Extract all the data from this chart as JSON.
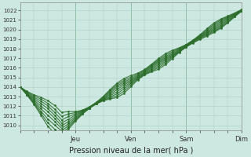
{
  "title": "Pression niveau de la mer( hPa )",
  "ylabel_ticks": [
    1010,
    1011,
    1012,
    1013,
    1014,
    1015,
    1016,
    1017,
    1018,
    1019,
    1020,
    1021,
    1022
  ],
  "ylim": [
    1009.5,
    1022.8
  ],
  "xlim": [
    0,
    96
  ],
  "xtick_positions": [
    24,
    48,
    72,
    96
  ],
  "xtick_labels": [
    "Jeu",
    "Ven",
    "Sam",
    "Dim"
  ],
  "vline_positions": [
    24,
    48,
    72,
    96
  ],
  "bg_color": "#cce8e0",
  "grid_color": "#aacfc8",
  "line_color": "#2d6e2d",
  "line_width": 0.8,
  "n_lines": 9,
  "x_hours": [
    0,
    3,
    6,
    9,
    12,
    15,
    18,
    21,
    24,
    27,
    30,
    33,
    36,
    39,
    42,
    45,
    48,
    51,
    54,
    57,
    60,
    63,
    66,
    69,
    72,
    75,
    78,
    81,
    84,
    87,
    90,
    93,
    96
  ]
}
